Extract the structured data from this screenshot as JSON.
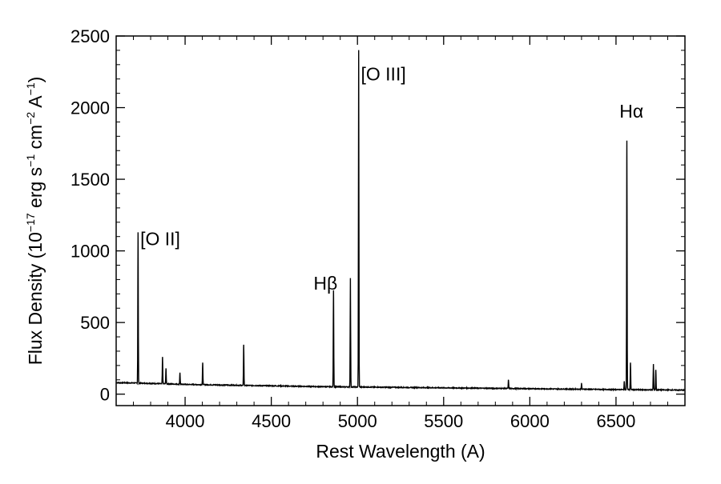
{
  "colors": {
    "background": "#ffffff",
    "axis": "#000000",
    "line": "#000000"
  },
  "chart_data": {
    "type": "line",
    "title": "",
    "xlabel": "Rest Wavelength (A)",
    "ylabel_parts": {
      "p1": "Flux Density (10",
      "e1": "−17",
      "p2": " erg s",
      "e2": "−1",
      "p3": " cm",
      "e3": "−2",
      "p4": " A",
      "e4": "−1",
      "p5": ")"
    },
    "xlim": [
      3600,
      6900
    ],
    "ylim": [
      -80,
      2500
    ],
    "x_ticks": [
      4000,
      4500,
      5000,
      5500,
      6000,
      6500
    ],
    "x_tick_labels": [
      "4000",
      "4500",
      "5000",
      "5500",
      "6000",
      "6500"
    ],
    "y_ticks": [
      0,
      500,
      1000,
      1500,
      2000,
      2500
    ],
    "y_tick_labels": [
      "0",
      "500",
      "1000",
      "1500",
      "2000",
      "2500"
    ],
    "grid": false,
    "continuum": [
      [
        3600,
        80
      ],
      [
        3700,
        78
      ],
      [
        3800,
        75
      ],
      [
        4000,
        68
      ],
      [
        4200,
        64
      ],
      [
        4500,
        58
      ],
      [
        4800,
        52
      ],
      [
        5000,
        50
      ],
      [
        5500,
        44
      ],
      [
        6000,
        38
      ],
      [
        6500,
        32
      ],
      [
        6900,
        28
      ]
    ],
    "emission_lines": [
      {
        "x": 3727,
        "peak": 1130
      },
      {
        "x": 3869,
        "peak": 260
      },
      {
        "x": 3889,
        "peak": 180
      },
      {
        "x": 3970,
        "peak": 150
      },
      {
        "x": 4102,
        "peak": 220
      },
      {
        "x": 4340,
        "peak": 345
      },
      {
        "x": 4861,
        "peak": 725
      },
      {
        "x": 4959,
        "peak": 810
      },
      {
        "x": 5007,
        "peak": 2400
      },
      {
        "x": 5876,
        "peak": 100
      },
      {
        "x": 6300,
        "peak": 75
      },
      {
        "x": 6548,
        "peak": 90
      },
      {
        "x": 6563,
        "peak": 1770
      },
      {
        "x": 6584,
        "peak": 220
      },
      {
        "x": 6717,
        "peak": 210
      },
      {
        "x": 6731,
        "peak": 170
      }
    ],
    "annotations": [
      {
        "text": "[O II]",
        "x": 3740,
        "y": 1040
      },
      {
        "text": "Hβ",
        "x": 4745,
        "y": 730
      },
      {
        "text": "[O III]",
        "x": 5020,
        "y": 2190
      },
      {
        "text": "Hα",
        "x": 6520,
        "y": 1930
      }
    ]
  }
}
